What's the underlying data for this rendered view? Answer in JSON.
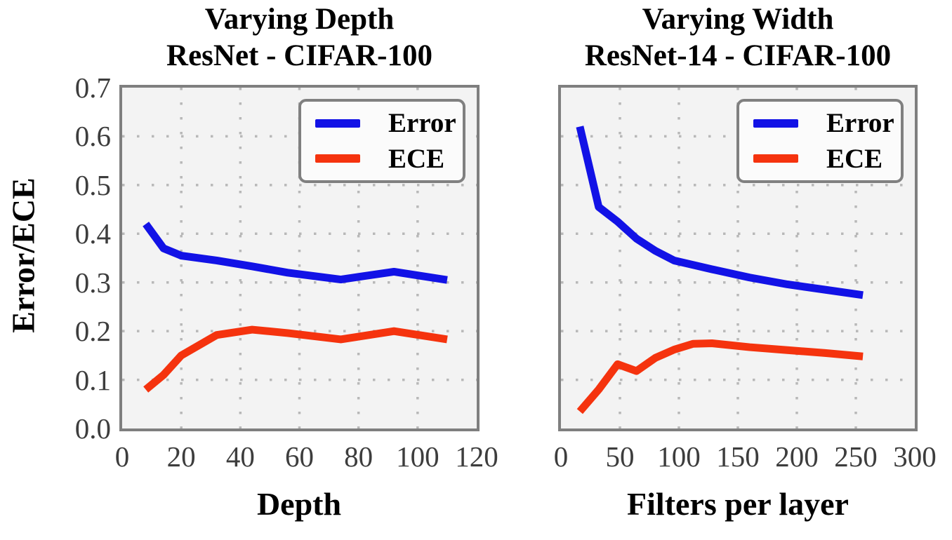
{
  "figure": {
    "ylabel": "Error/ECE",
    "background": "#ffffff",
    "axes_background": "#f3f3f3",
    "spine_color": "#7f7f7f",
    "grid_color": "#b8b8b8",
    "tick_color": "#3d3d3d"
  },
  "legend": {
    "entries": [
      {
        "label": "Error",
        "color": "#1212e6"
      },
      {
        "label": "ECE",
        "color": "#f5330e"
      }
    ]
  },
  "chart_data": [
    {
      "type": "line",
      "title_line1": "Varying Depth",
      "title_line2": "ResNet - CIFAR-100",
      "xlabel": "Depth",
      "ylabel": "Error/ECE",
      "xlim": [
        0,
        120
      ],
      "ylim": [
        0,
        0.7
      ],
      "xticks": [
        0,
        20,
        40,
        60,
        80,
        100,
        120
      ],
      "xtick_labels": [
        "0",
        "20",
        "40",
        "60",
        "80",
        "100",
        "120"
      ],
      "yticks": [
        0.0,
        0.1,
        0.2,
        0.3,
        0.4,
        0.5,
        0.6,
        0.7
      ],
      "ytick_labels": [
        "0.0",
        "0.1",
        "0.2",
        "0.3",
        "0.4",
        "0.5",
        "0.6",
        "0.7"
      ],
      "show_ytick_labels": true,
      "grid": true,
      "legend_position": "upper right",
      "series": [
        {
          "name": "Error",
          "color": "#1212e6",
          "x": [
            8,
            14,
            20,
            32,
            44,
            56,
            74,
            92,
            110
          ],
          "y": [
            0.42,
            0.37,
            0.355,
            0.345,
            0.333,
            0.32,
            0.306,
            0.322,
            0.305
          ]
        },
        {
          "name": "ECE",
          "color": "#f5330e",
          "x": [
            8,
            14,
            20,
            32,
            44,
            56,
            74,
            92,
            110
          ],
          "y": [
            0.08,
            0.11,
            0.15,
            0.192,
            0.203,
            0.196,
            0.183,
            0.2,
            0.183
          ]
        }
      ]
    },
    {
      "type": "line",
      "title_line1": "Varying Width",
      "title_line2": "ResNet-14 - CIFAR-100",
      "xlabel": "Filters per layer",
      "ylabel": "Error/ECE",
      "xlim": [
        0,
        300
      ],
      "ylim": [
        0,
        0.7
      ],
      "xticks": [
        0,
        50,
        100,
        150,
        200,
        250,
        300
      ],
      "xtick_labels": [
        "0",
        "50",
        "100",
        "150",
        "200",
        "250",
        "300"
      ],
      "yticks": [
        0.0,
        0.1,
        0.2,
        0.3,
        0.4,
        0.5,
        0.6,
        0.7
      ],
      "ytick_labels": [
        "0.0",
        "0.1",
        "0.2",
        "0.3",
        "0.4",
        "0.5",
        "0.6",
        "0.7"
      ],
      "show_ytick_labels": false,
      "grid": true,
      "legend_position": "upper right",
      "series": [
        {
          "name": "Error",
          "color": "#1212e6",
          "x": [
            16,
            32,
            48,
            64,
            80,
            96,
            128,
            160,
            192,
            224,
            256
          ],
          "y": [
            0.62,
            0.455,
            0.425,
            0.39,
            0.365,
            0.345,
            0.327,
            0.31,
            0.296,
            0.285,
            0.274
          ]
        },
        {
          "name": "ECE",
          "color": "#f5330e",
          "x": [
            16,
            32,
            48,
            64,
            80,
            96,
            112,
            128,
            160,
            192,
            224,
            256
          ],
          "y": [
            0.035,
            0.08,
            0.132,
            0.118,
            0.145,
            0.162,
            0.174,
            0.175,
            0.167,
            0.161,
            0.155,
            0.148
          ]
        }
      ]
    }
  ]
}
